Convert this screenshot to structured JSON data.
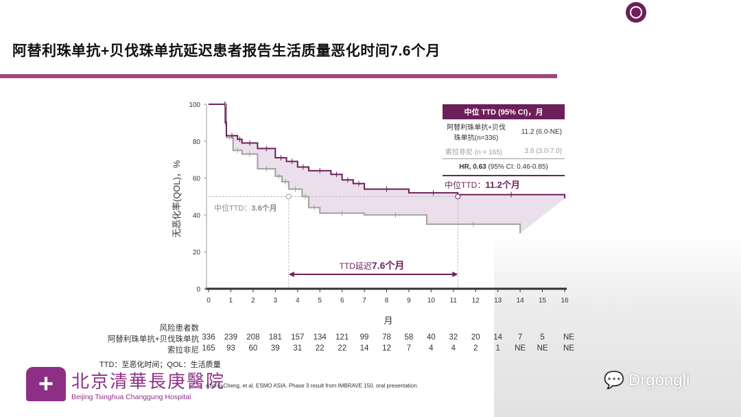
{
  "title": "阿替利珠单抗+贝伐珠单抗延迟患者报告生活质量恶化时间7.6个月",
  "legend": {
    "header": "中位 TTD (95% CI)，月",
    "rows": [
      {
        "label": "阿替利珠单抗+贝伐珠单抗(n=336)",
        "value": "11.2 (6.0-NE)"
      },
      {
        "label": "索拉非尼 (n = 165)",
        "value": "3.6 (3.0-7.0)"
      }
    ],
    "hr_bold": "HR, 0.63",
    "hr_rest": " (95% CI: 0.46-0.85)"
  },
  "annotations": {
    "median_atezo": "中位TTD：",
    "median_atezo_val": "11.2个月",
    "median_sora": "中位TTD：",
    "median_sora_val": "3.6个月",
    "delay": "TTD延迟",
    "delay_val": "7.6个月"
  },
  "risk_table": {
    "title": "风险患者数",
    "rows": [
      {
        "label": "阿替利珠单抗+贝伐珠单抗",
        "values": [
          "336",
          "239",
          "208",
          "181",
          "157",
          "134",
          "121",
          "99",
          "78",
          "58",
          "40",
          "32",
          "20",
          "14",
          "7",
          "5",
          "NE"
        ]
      },
      {
        "label": "索拉非尼",
        "values": [
          "165",
          "93",
          "60",
          "39",
          "31",
          "22",
          "22",
          "14",
          "12",
          "7",
          "4",
          "4",
          "2",
          "1",
          "NE",
          "NE",
          "NE"
        ]
      }
    ]
  },
  "footnote": "TTD：至恶化时间；QOL：生活质量",
  "hospital": {
    "cn": "北京清華長庚醫院",
    "en": "Beijing Tsinghua Changgung Hospital"
  },
  "reference": "Ann-Li Cheng, et al. ESMO ASIA. Phase 3 result from IMBRAVE 150. oral presentation.",
  "watermark": "Drgongli",
  "colors": {
    "atezo": "#6d1f5a",
    "sora": "#a0a0a0",
    "fill": "#e6d9e6",
    "accent": "#a0457e"
  },
  "chart_data": {
    "type": "line",
    "title": "",
    "xlabel": "月",
    "ylabel": "无恶化率(QOL)，%",
    "xlim": [
      0,
      16
    ],
    "ylim": [
      0,
      100
    ],
    "xticks": [
      0,
      1,
      2,
      3,
      4,
      5,
      6,
      7,
      8,
      9,
      10,
      11,
      12,
      13,
      14,
      15,
      16
    ],
    "yticks": [
      0,
      20,
      40,
      60,
      80,
      100
    ],
    "series": [
      {
        "name": "阿替利珠单抗+贝伐珠单抗",
        "step": true,
        "x": [
          0,
          0.7,
          0.75,
          0.8,
          1.3,
          1.5,
          2.2,
          3.0,
          3.5,
          4.0,
          4.5,
          5.5,
          6.0,
          6.5,
          7.0,
          9.0,
          11.2,
          16
        ],
        "y": [
          100,
          100,
          90,
          83,
          81,
          79,
          76,
          71,
          69,
          66,
          64,
          62,
          59,
          57,
          54,
          52,
          51,
          49
        ]
      },
      {
        "name": "索拉非尼",
        "step": true,
        "x": [
          0,
          0.7,
          0.8,
          1.1,
          1.5,
          2.2,
          3.0,
          3.3,
          3.6,
          4.2,
          4.5,
          5.0,
          7.0,
          9.8,
          14
        ],
        "y": [
          100,
          100,
          82,
          75,
          73,
          65,
          61,
          58,
          54,
          50,
          44,
          41,
          40,
          35,
          30
        ]
      }
    ],
    "medians": [
      11.2,
      3.6
    ]
  }
}
